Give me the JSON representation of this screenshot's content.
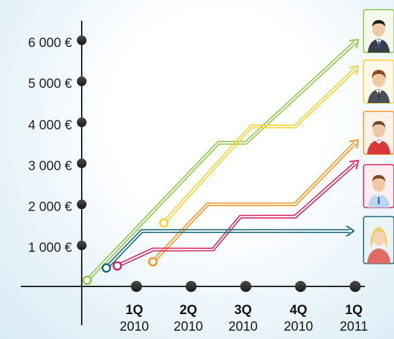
{
  "chart_data": {
    "type": "line",
    "title": "",
    "xlabel": "",
    "ylabel": "",
    "y_ticks": [
      "1 000 €",
      "2 000 €",
      "3 000 €",
      "4 000 €",
      "5 000 €",
      "6 000 €"
    ],
    "y_tick_values": [
      1000,
      2000,
      3000,
      4000,
      5000,
      6000
    ],
    "x_ticks": [
      {
        "quarter": "1Q",
        "year": "2010"
      },
      {
        "quarter": "2Q",
        "year": "2010"
      },
      {
        "quarter": "3Q",
        "year": "2010"
      },
      {
        "quarter": "4Q",
        "year": "2010"
      },
      {
        "quarter": "1Q",
        "year": "2011"
      }
    ],
    "x_tick_values": [
      1,
      2,
      3,
      4,
      5
    ],
    "ylim": [
      -200,
      6400
    ],
    "xlim": [
      0,
      5.1
    ],
    "grid": false,
    "legend": "right (person avatars)",
    "series": [
      {
        "color": "#8cc63f",
        "icon": "businessman-dark-suit-avatar",
        "points": [
          [
            0.1,
            150
          ],
          [
            2.5,
            3500
          ],
          [
            3.0,
            3500
          ],
          [
            5.0,
            5950
          ]
        ]
      },
      {
        "color": "#f7d02c",
        "icon": "businessman-brown-hair-avatar",
        "points": [
          [
            1.5,
            1550
          ],
          [
            3.1,
            3900
          ],
          [
            3.9,
            3900
          ],
          [
            5.0,
            5300
          ]
        ]
      },
      {
        "color": "#f7941d",
        "icon": "man-red-sweater-avatar",
        "points": [
          [
            1.3,
            600
          ],
          [
            2.3,
            2000
          ],
          [
            3.9,
            2000
          ],
          [
            5.0,
            3500
          ]
        ]
      },
      {
        "color": "#d6215b",
        "icon": "man-light-shirt-avatar",
        "points": [
          [
            0.65,
            500
          ],
          [
            1.3,
            900
          ],
          [
            2.4,
            900
          ],
          [
            2.9,
            1700
          ],
          [
            3.9,
            1700
          ],
          [
            5.0,
            3000
          ]
        ]
      },
      {
        "color": "#13667a",
        "icon": "woman-blonde-avatar",
        "points": [
          [
            0.45,
            450
          ],
          [
            1.1,
            1350
          ],
          [
            4.9,
            1350
          ]
        ]
      }
    ]
  }
}
